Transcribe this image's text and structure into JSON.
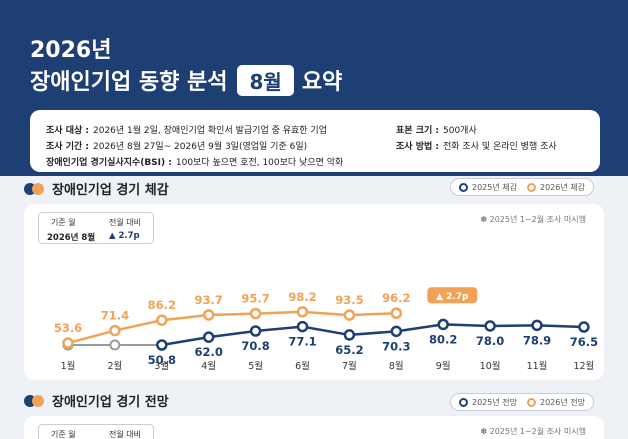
{
  "header": {
    "year": "2026년",
    "title_before": "장애인기업 동향 분석",
    "title_badge": "8월",
    "title_after": "요약"
  },
  "info": {
    "target_label": "조사 대상 :",
    "target_value": "2026년 1월 2일, 장애인기업 확인서 발급기업 중 유효한 기업",
    "period_label": "조사 기간 :",
    "period_value": "2026년 8월 27일~ 2026년 9월 3일(영업일 기준 6일)",
    "bsi_label": "장애인기업 경기실사지수(BSI) :",
    "bsi_value": "100보다 높으면 호전, 100보다 낮으면 악화",
    "sample_label": "표본 크기 :",
    "sample_value": "500개사",
    "method_label": "조사 방법 :",
    "method_value": "전화 조사 및 온라인 병행 조사"
  },
  "section1": {
    "title": "장애인기업 경기 체감",
    "legend_2025": "2025년 체감",
    "legend_2026": "2026년 체감",
    "std_month_label": "기준 월",
    "std_month_value": "2026년 8월",
    "mom_label": "전월 대비",
    "mom_value": "▲ 2.7p",
    "note": "✽ 2025년 1~2월 조사 미시행",
    "callout": "▲ 2.7p"
  },
  "section2": {
    "title": "장애인기업 경기 전망",
    "legend_2025": "2025년 전망",
    "legend_2026": "2026년 전망",
    "std_month_label": "기준 월",
    "mom_label": "전월 대비",
    "note": "✽ 2025년 1~2월 조사 미시행"
  },
  "colors": {
    "navy": "#1d3f73",
    "orange": "#f2a256",
    "gray": "#9a9a9a"
  },
  "chart_data": {
    "type": "line",
    "title": "장애인기업 경기 체감",
    "categories": [
      "1월",
      "2월",
      "3월",
      "4월",
      "5월",
      "6월",
      "7월",
      "8월",
      "9월",
      "10월",
      "11월",
      "12월"
    ],
    "series": [
      {
        "name": "2025년 체감",
        "values": [
          null,
          null,
          50.8,
          62.0,
          70.8,
          77.1,
          65.2,
          70.3,
          80.2,
          78.0,
          78.9,
          76.5
        ]
      },
      {
        "name": "2026년 체감",
        "values": [
          53.6,
          71.4,
          86.2,
          93.7,
          95.7,
          98.2,
          93.5,
          96.2,
          null,
          null,
          null,
          null
        ]
      }
    ],
    "grid": false,
    "legend": "top-right"
  }
}
